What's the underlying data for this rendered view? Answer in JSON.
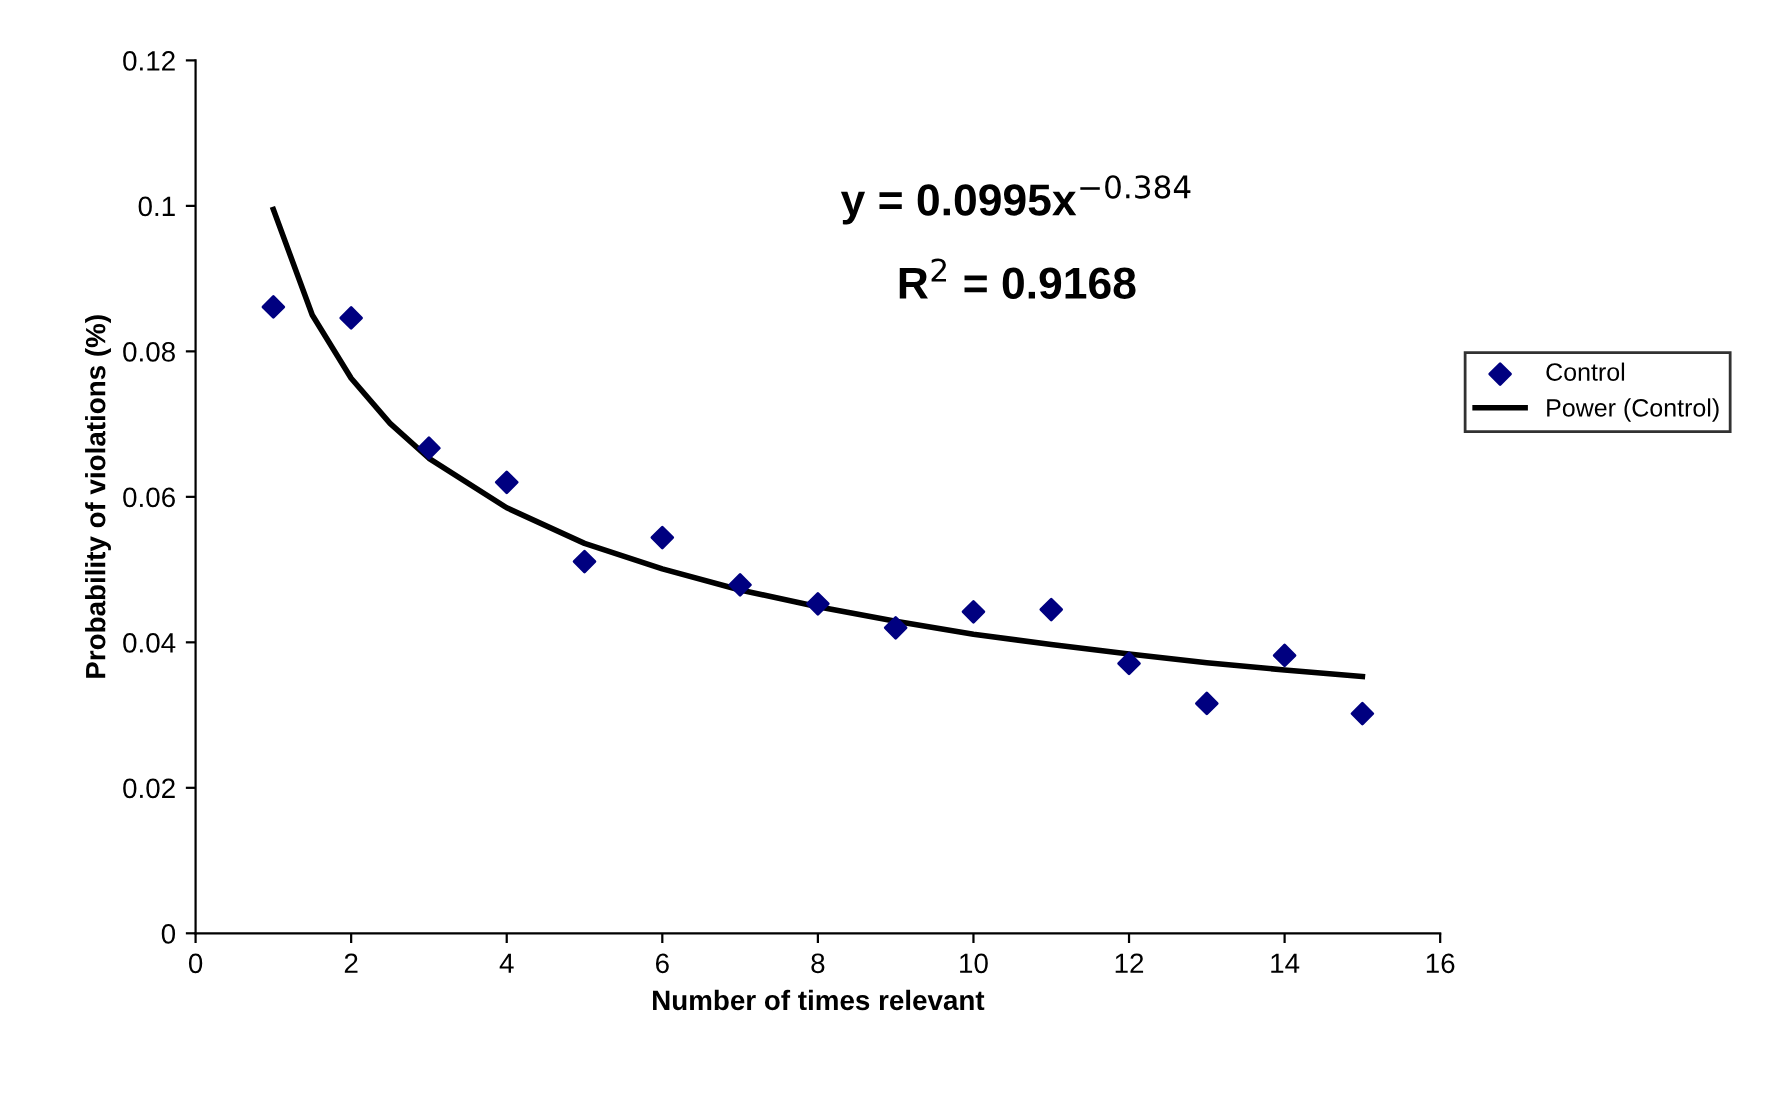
{
  "chart_data": {
    "type": "scatter",
    "xlabel": "Number of times relevant",
    "ylabel": "Probability of violations (%)",
    "xlim": [
      0,
      16
    ],
    "xticks": [
      0,
      2,
      4,
      6,
      8,
      10,
      12,
      14,
      16
    ],
    "ylim": [
      0,
      0.12
    ],
    "yticks": [
      0,
      0.02,
      0.04,
      0.06,
      0.08,
      0.1,
      0.12
    ],
    "grid": false,
    "legend": "right",
    "marker": "diamond",
    "annotations": [
      "y = 0.0995x$^{−0.384}$",
      "R$^{2}$ = 0.9168"
    ],
    "series": [
      {
        "name": "Control",
        "color": "#000080",
        "x": [
          1,
          2,
          3,
          4,
          5,
          6,
          7,
          8,
          9,
          10,
          11,
          12,
          13,
          14,
          15
        ],
        "values": [
          0.0861,
          0.0846,
          0.0667,
          0.062,
          0.0511,
          0.0544,
          0.0479,
          0.0453,
          0.042,
          0.0442,
          0.0445,
          0.0371,
          0.0316,
          0.0382,
          0.0302
        ]
      },
      {
        "name": "Power (Control)",
        "type": "line",
        "color": "#000000",
        "marker": "none",
        "line_style": "solid",
        "x": [
          1,
          1.5,
          2,
          2.5,
          3,
          4,
          5,
          6,
          7,
          8,
          9,
          10,
          11,
          12,
          13,
          14,
          15
        ],
        "values": [
          0.0995,
          0.085,
          0.0763,
          0.0701,
          0.0653,
          0.0585,
          0.0536,
          0.0501,
          0.0472,
          0.0449,
          0.0429,
          0.0411,
          0.0397,
          0.0384,
          0.0372,
          0.0362,
          0.0353
        ]
      }
    ]
  }
}
